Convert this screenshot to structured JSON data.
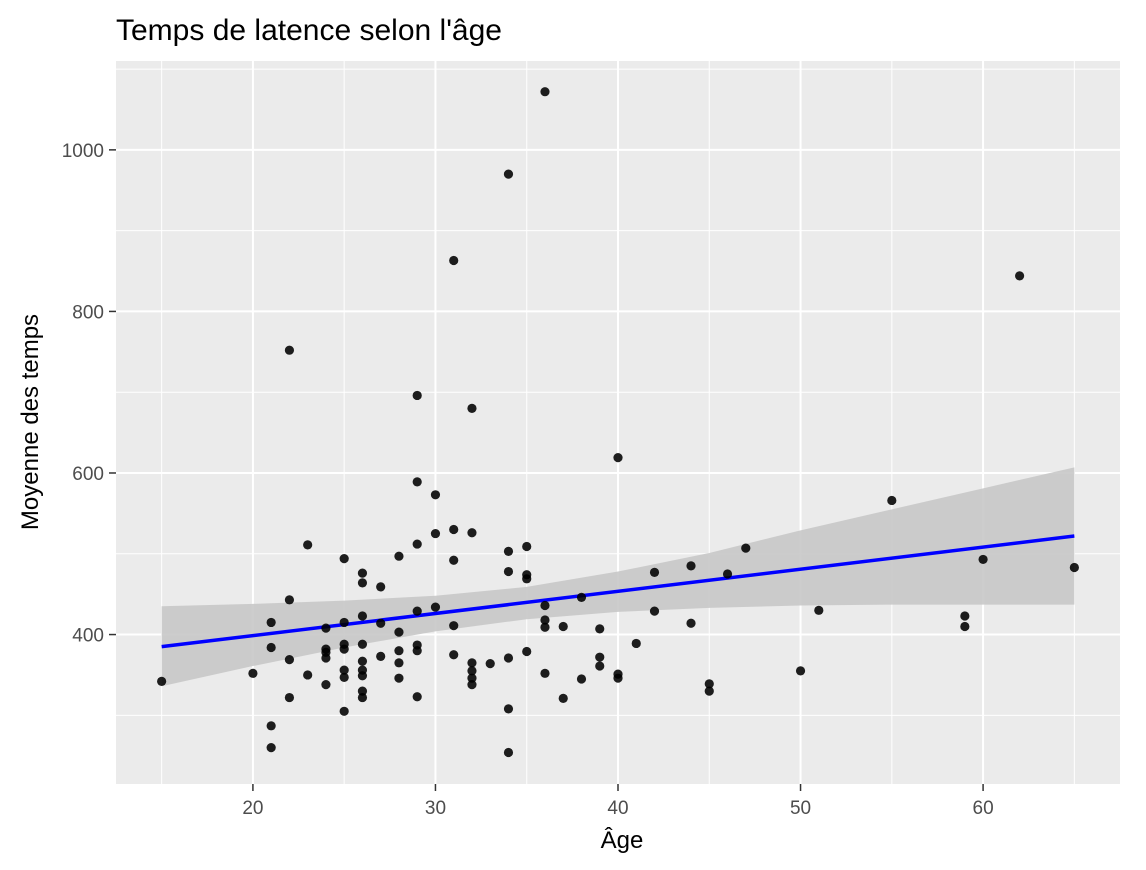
{
  "chart_data": {
    "type": "scatter",
    "title": "Temps de latence selon l'âge",
    "xlabel": "Âge",
    "ylabel": "Moyenne des temps",
    "xlim": [
      12.5,
      67.5
    ],
    "ylim": [
      215,
      1110
    ],
    "x_ticks": [
      20,
      30,
      40,
      50,
      60
    ],
    "y_ticks": [
      400,
      600,
      800,
      1000
    ],
    "grid": true,
    "colors": {
      "panel_background": "#ebebeb",
      "grid": "#ffffff",
      "points": "#000000",
      "regression_line": "#0000ff",
      "confidence_band": "#c8c8c8"
    },
    "points": [
      {
        "x": 15,
        "y": 342
      },
      {
        "x": 20,
        "y": 352
      },
      {
        "x": 21,
        "y": 415
      },
      {
        "x": 21,
        "y": 384
      },
      {
        "x": 21,
        "y": 287
      },
      {
        "x": 21,
        "y": 260
      },
      {
        "x": 22,
        "y": 752
      },
      {
        "x": 22,
        "y": 443
      },
      {
        "x": 22,
        "y": 369
      },
      {
        "x": 22,
        "y": 322
      },
      {
        "x": 23,
        "y": 511
      },
      {
        "x": 23,
        "y": 350
      },
      {
        "x": 24,
        "y": 408
      },
      {
        "x": 24,
        "y": 382
      },
      {
        "x": 24,
        "y": 378
      },
      {
        "x": 24,
        "y": 371
      },
      {
        "x": 24,
        "y": 338
      },
      {
        "x": 25,
        "y": 494
      },
      {
        "x": 25,
        "y": 415
      },
      {
        "x": 25,
        "y": 388
      },
      {
        "x": 25,
        "y": 382
      },
      {
        "x": 25,
        "y": 356
      },
      {
        "x": 25,
        "y": 347
      },
      {
        "x": 25,
        "y": 305
      },
      {
        "x": 26,
        "y": 476
      },
      {
        "x": 26,
        "y": 464
      },
      {
        "x": 26,
        "y": 423
      },
      {
        "x": 26,
        "y": 388
      },
      {
        "x": 26,
        "y": 367
      },
      {
        "x": 26,
        "y": 356
      },
      {
        "x": 26,
        "y": 349
      },
      {
        "x": 26,
        "y": 330
      },
      {
        "x": 26,
        "y": 322
      },
      {
        "x": 27,
        "y": 459
      },
      {
        "x": 27,
        "y": 414
      },
      {
        "x": 27,
        "y": 373
      },
      {
        "x": 28,
        "y": 497
      },
      {
        "x": 28,
        "y": 403
      },
      {
        "x": 28,
        "y": 380
      },
      {
        "x": 28,
        "y": 365
      },
      {
        "x": 28,
        "y": 346
      },
      {
        "x": 29,
        "y": 696
      },
      {
        "x": 29,
        "y": 589
      },
      {
        "x": 29,
        "y": 512
      },
      {
        "x": 29,
        "y": 429
      },
      {
        "x": 29,
        "y": 387
      },
      {
        "x": 29,
        "y": 380
      },
      {
        "x": 29,
        "y": 323
      },
      {
        "x": 30,
        "y": 573
      },
      {
        "x": 30,
        "y": 525
      },
      {
        "x": 30,
        "y": 434
      },
      {
        "x": 31,
        "y": 863
      },
      {
        "x": 31,
        "y": 530
      },
      {
        "x": 31,
        "y": 492
      },
      {
        "x": 31,
        "y": 411
      },
      {
        "x": 31,
        "y": 375
      },
      {
        "x": 32,
        "y": 680
      },
      {
        "x": 32,
        "y": 526
      },
      {
        "x": 32,
        "y": 365
      },
      {
        "x": 32,
        "y": 355
      },
      {
        "x": 32,
        "y": 346
      },
      {
        "x": 32,
        "y": 338
      },
      {
        "x": 33,
        "y": 364
      },
      {
        "x": 34,
        "y": 970
      },
      {
        "x": 34,
        "y": 503
      },
      {
        "x": 34,
        "y": 478
      },
      {
        "x": 34,
        "y": 371
      },
      {
        "x": 34,
        "y": 308
      },
      {
        "x": 34,
        "y": 254
      },
      {
        "x": 35,
        "y": 509
      },
      {
        "x": 35,
        "y": 474
      },
      {
        "x": 35,
        "y": 469
      },
      {
        "x": 35,
        "y": 379
      },
      {
        "x": 36,
        "y": 1072
      },
      {
        "x": 36,
        "y": 436
      },
      {
        "x": 36,
        "y": 418
      },
      {
        "x": 36,
        "y": 409
      },
      {
        "x": 36,
        "y": 352
      },
      {
        "x": 37,
        "y": 410
      },
      {
        "x": 37,
        "y": 321
      },
      {
        "x": 38,
        "y": 446
      },
      {
        "x": 38,
        "y": 345
      },
      {
        "x": 39,
        "y": 407
      },
      {
        "x": 39,
        "y": 372
      },
      {
        "x": 39,
        "y": 361
      },
      {
        "x": 40,
        "y": 619
      },
      {
        "x": 40,
        "y": 351
      },
      {
        "x": 40,
        "y": 346
      },
      {
        "x": 41,
        "y": 389
      },
      {
        "x": 42,
        "y": 477
      },
      {
        "x": 42,
        "y": 429
      },
      {
        "x": 44,
        "y": 485
      },
      {
        "x": 44,
        "y": 414
      },
      {
        "x": 45,
        "y": 339
      },
      {
        "x": 45,
        "y": 330
      },
      {
        "x": 46,
        "y": 475
      },
      {
        "x": 47,
        "y": 507
      },
      {
        "x": 50,
        "y": 355
      },
      {
        "x": 51,
        "y": 430
      },
      {
        "x": 55,
        "y": 566
      },
      {
        "x": 59,
        "y": 423
      },
      {
        "x": 59,
        "y": 410
      },
      {
        "x": 60,
        "y": 493
      },
      {
        "x": 62,
        "y": 844
      },
      {
        "x": 65,
        "y": 483
      }
    ],
    "regression_line": {
      "x": [
        15,
        65
      ],
      "y": [
        385,
        522
      ]
    },
    "confidence_band": {
      "x": [
        15,
        20,
        25,
        30,
        35,
        40,
        45,
        50,
        55,
        60,
        65
      ],
      "lower": [
        336,
        361,
        384,
        404,
        419,
        428,
        433,
        436,
        437,
        437,
        437
      ],
      "upper": [
        435,
        438,
        442,
        448,
        459,
        478,
        501,
        529,
        555,
        581,
        607
      ]
    }
  }
}
